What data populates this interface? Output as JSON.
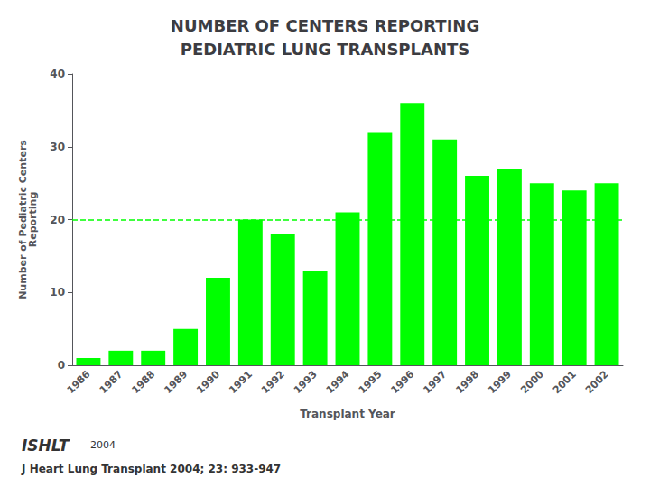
{
  "chart_data": {
    "type": "bar",
    "title": "NUMBER OF CENTERS REPORTING\nPEDIATRIC LUNG TRANSPLANTS",
    "categories": [
      "1986",
      "1987",
      "1988",
      "1989",
      "1990",
      "1991",
      "1992",
      "1993",
      "1994",
      "1995",
      "1996",
      "1997",
      "1998",
      "1999",
      "2000",
      "2001",
      "2002"
    ],
    "values": [
      1,
      2,
      2,
      5,
      12,
      20,
      18,
      13,
      21,
      32,
      36,
      31,
      26,
      27,
      25,
      24,
      25
    ],
    "color": "#00FF00",
    "xlabel": "Transplant Year",
    "ylabel": "Number of Pediatric Centers\nReporting",
    "ylim": [
      0,
      40
    ],
    "yticks": [
      0,
      10,
      20,
      30,
      40
    ],
    "grid": false,
    "reference_lines": [
      {
        "y": 20,
        "line_style": "dashed"
      }
    ],
    "annotations": [
      "ISHLT",
      "2004",
      "J Heart Lung Transplant 2004; 23: 933-947"
    ]
  }
}
